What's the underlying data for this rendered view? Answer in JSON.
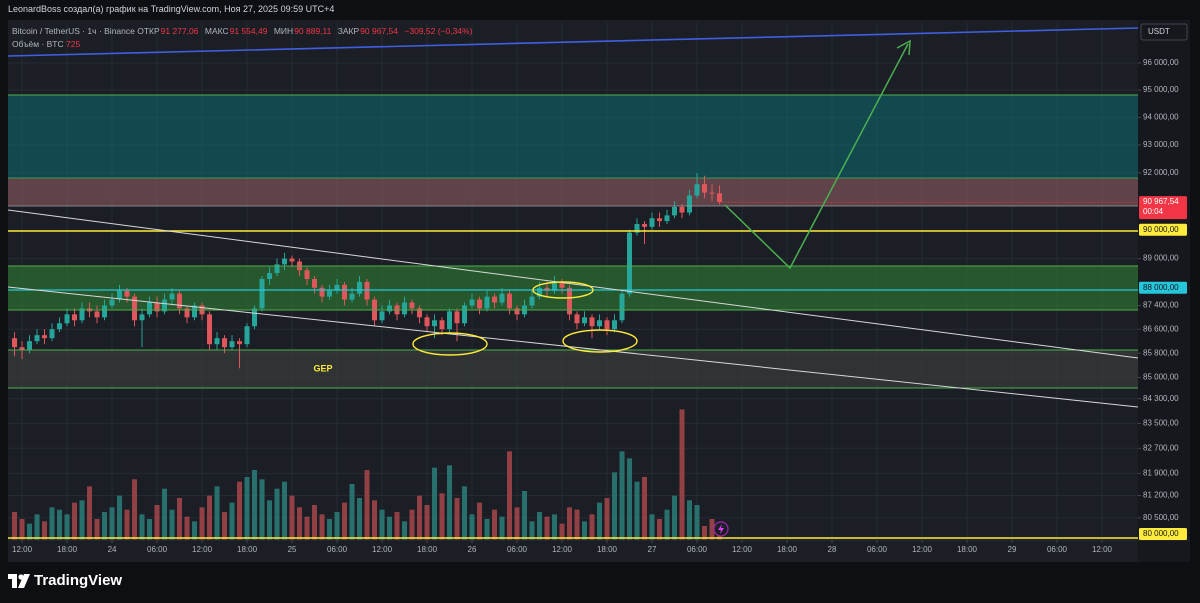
{
  "header": {
    "credit": "LeonardBoss создал(а) график на TradingView.com, Ноя 27, 2025 09:59 UTC+4"
  },
  "footer": {
    "logo": "TradingView"
  },
  "chart_data": {
    "type": "candlestick",
    "currency": "USDT",
    "annotation": "GEP",
    "legend": {
      "symbol": "Bitcoin / TetherUS · 1ч · Binance",
      "open_label": "ОТКР",
      "open": "91 277,06",
      "high_label": "МАКС",
      "high": "91 554,49",
      "low_label": "МИН",
      "low": "90 889,11",
      "close_label": "ЗАКР",
      "close": "90 967,54",
      "change": "−309,52 (−0,34%)"
    },
    "volume_label": "Объём · BTC",
    "log": true,
    "grid": true,
    "up_color": "#26a69a",
    "down_color": "#e0575b",
    "volume_up_color": "#2a7f7a",
    "volume_down_color": "#a6474a",
    "xlim": [
      -1.87,
      148.8
    ],
    "ylim": [
      79815,
      97535
    ],
    "vlim": [
      0,
      6000
    ],
    "xticks": [
      {
        "value": 0,
        "label": "12:00"
      },
      {
        "value": 6,
        "label": "18:00"
      },
      {
        "value": 12,
        "label": "24"
      },
      {
        "value": 18,
        "label": "06:00"
      },
      {
        "value": 24,
        "label": "12:00"
      },
      {
        "value": 30,
        "label": "18:00"
      },
      {
        "value": 36,
        "label": "25"
      },
      {
        "value": 42,
        "label": "06:00"
      },
      {
        "value": 48,
        "label": "12:00"
      },
      {
        "value": 54,
        "label": "18:00"
      },
      {
        "value": 60,
        "label": "26"
      },
      {
        "value": 66,
        "label": "06:00"
      },
      {
        "value": 72,
        "label": "12:00"
      },
      {
        "value": 78,
        "label": "18:00"
      },
      {
        "value": 84,
        "label": "27"
      },
      {
        "value": 90,
        "label": "06:00"
      },
      {
        "value": 96,
        "label": "12:00"
      },
      {
        "value": 102,
        "label": "18:00"
      },
      {
        "value": 108,
        "label": "28"
      },
      {
        "value": 114,
        "label": "06:00"
      },
      {
        "value": 120,
        "label": "12:00"
      },
      {
        "value": 126,
        "label": "18:00"
      },
      {
        "value": 132,
        "label": "29"
      },
      {
        "value": 138,
        "label": "06:00"
      },
      {
        "value": 144,
        "label": "12:00"
      }
    ],
    "yticks": [
      {
        "value": 96000,
        "label": "96 000,00"
      },
      {
        "value": 95000,
        "label": "95 000,00"
      },
      {
        "value": 94000,
        "label": "94 000,00"
      },
      {
        "value": 93000,
        "label": "93 000,00"
      },
      {
        "value": 92000,
        "label": "92 000,00"
      },
      {
        "value": 89000,
        "label": "89 000,00"
      },
      {
        "value": 87400,
        "label": "87 400,00"
      },
      {
        "value": 86600,
        "label": "86 600,00"
      },
      {
        "value": 85800,
        "label": "85 800,00"
      },
      {
        "value": 85000,
        "label": "85 000,00"
      },
      {
        "value": 84300,
        "label": "84 300,00"
      },
      {
        "value": 83500,
        "label": "83 500,00"
      },
      {
        "value": 82700,
        "label": "82 700,00"
      },
      {
        "value": 81900,
        "label": "81 900,00"
      },
      {
        "value": 81200,
        "label": "81 200,00"
      },
      {
        "value": 80500,
        "label": "80 500,00"
      }
    ],
    "price_markers": [
      {
        "value": 90000,
        "label": "90 000,00",
        "color": "#ffeb3b"
      },
      {
        "value": 88000,
        "label": "88 000,00",
        "color": "#26c6da"
      },
      {
        "value": 80000,
        "label": "80 000,00",
        "color": "#ffeb3b"
      }
    ],
    "last_price": {
      "value": 90967.54,
      "label": "90 967,54",
      "countdown": "00:04",
      "color": "#f23645"
    },
    "x": [
      -1,
      0,
      1,
      2,
      3,
      4,
      5,
      6,
      7,
      8,
      9,
      10,
      11,
      12,
      13,
      14,
      15,
      16,
      17,
      18,
      19,
      20,
      21,
      22,
      23,
      24,
      25,
      26,
      27,
      28,
      29,
      30,
      31,
      32,
      33,
      34,
      35,
      36,
      37,
      38,
      39,
      40,
      41,
      42,
      43,
      44,
      45,
      46,
      47,
      48,
      49,
      50,
      51,
      52,
      53,
      54,
      55,
      56,
      57,
      58,
      59,
      60,
      61,
      62,
      63,
      64,
      65,
      66,
      67,
      68,
      69,
      70,
      71,
      72,
      73,
      74,
      75,
      76,
      77,
      78,
      79,
      80,
      81,
      82,
      83,
      84,
      85,
      86,
      87,
      88,
      89,
      90,
      91,
      92,
      93
    ],
    "open": [
      86300,
      86000,
      85900,
      86200,
      86400,
      86300,
      86600,
      86800,
      87100,
      86900,
      87300,
      87200,
      87000,
      87400,
      87600,
      87900,
      87700,
      86900,
      87100,
      87500,
      87200,
      87600,
      87800,
      87300,
      87000,
      87400,
      87100,
      86100,
      86300,
      86000,
      86200,
      86100,
      86700,
      87300,
      88300,
      88500,
      88800,
      89000,
      88900,
      88600,
      88300,
      88000,
      87700,
      87900,
      88100,
      87600,
      87800,
      88200,
      87600,
      86900,
      87200,
      87400,
      87100,
      87500,
      87300,
      87000,
      86700,
      86900,
      86600,
      87200,
      86800,
      87400,
      87600,
      87300,
      87700,
      87500,
      87800,
      87300,
      87100,
      87400,
      87700,
      88000,
      87900,
      88200,
      88000,
      87100,
      86800,
      87000,
      86700,
      86900,
      86600,
      86900,
      87800,
      89900,
      90200,
      90100,
      90400,
      90300,
      90500,
      90800,
      90600,
      91200,
      91600,
      91300,
      91277.06
    ],
    "high": [
      86500,
      86200,
      86400,
      86600,
      86600,
      86800,
      87000,
      87300,
      87300,
      87500,
      87500,
      87400,
      87600,
      87800,
      88100,
      88000,
      87800,
      87300,
      87700,
      87700,
      87800,
      88000,
      87900,
      87400,
      87500,
      87500,
      87200,
      86500,
      86400,
      86400,
      86300,
      86800,
      87400,
      88400,
      88700,
      89000,
      89200,
      89100,
      89000,
      88700,
      88400,
      88100,
      88100,
      88300,
      88200,
      88000,
      88400,
      88300,
      87700,
      87400,
      87600,
      87500,
      87700,
      87600,
      87400,
      87100,
      87100,
      87000,
      87300,
      87300,
      87500,
      87800,
      87700,
      87900,
      87800,
      88000,
      87900,
      87400,
      87600,
      87900,
      88200,
      88200,
      88400,
      88300,
      88100,
      87200,
      87200,
      87100,
      87100,
      87000,
      87100,
      87900,
      90000,
      90400,
      90300,
      90600,
      90600,
      90700,
      91000,
      90900,
      91400,
      92000,
      91900,
      91600,
      91554.49
    ],
    "low": [
      85700,
      85600,
      85800,
      86100,
      86100,
      86200,
      86500,
      86700,
      86700,
      86800,
      87000,
      86800,
      86900,
      87300,
      87500,
      87500,
      86700,
      86000,
      87000,
      87000,
      87100,
      87400,
      87100,
      86800,
      86900,
      86900,
      85900,
      85900,
      85800,
      85900,
      85300,
      86000,
      86600,
      87200,
      88100,
      88400,
      88600,
      88700,
      88400,
      88100,
      87800,
      87500,
      87600,
      87800,
      87400,
      87500,
      87700,
      87400,
      86700,
      86800,
      87100,
      86900,
      87000,
      87100,
      86800,
      86500,
      86300,
      86400,
      86500,
      86200,
      86700,
      87300,
      87100,
      87200,
      87300,
      87400,
      87100,
      86900,
      87000,
      87300,
      87600,
      87700,
      87800,
      87800,
      86900,
      86600,
      86700,
      86300,
      86600,
      86400,
      86500,
      86800,
      87700,
      89800,
      89500,
      90000,
      90100,
      90200,
      90400,
      90400,
      90500,
      91100,
      91100,
      91000,
      90889.11
    ],
    "close": [
      86000,
      85900,
      86200,
      86400,
      86300,
      86600,
      86800,
      87100,
      86900,
      87300,
      87200,
      87000,
      87400,
      87600,
      87900,
      87700,
      86900,
      87100,
      87500,
      87200,
      87600,
      87800,
      87300,
      87000,
      87400,
      87100,
      86100,
      86300,
      86000,
      86200,
      86100,
      86700,
      87300,
      88300,
      88500,
      88800,
      89000,
      88900,
      88600,
      88300,
      88000,
      87700,
      87900,
      88100,
      87600,
      87800,
      88200,
      87600,
      86900,
      87200,
      87400,
      87100,
      87500,
      87300,
      87000,
      86700,
      86900,
      86600,
      87200,
      86800,
      87400,
      87600,
      87300,
      87700,
      87500,
      87800,
      87300,
      87100,
      87400,
      87700,
      88000,
      87900,
      88200,
      88000,
      87100,
      86800,
      87000,
      86700,
      86900,
      86600,
      86900,
      87800,
      89900,
      90200,
      90100,
      90400,
      90300,
      90500,
      90800,
      90600,
      91200,
      91600,
      91300,
      91277.06,
      90967.54
    ],
    "volume": [
      1200,
      900,
      700,
      1100,
      800,
      1400,
      1300,
      1100,
      1600,
      1700,
      2300,
      900,
      1200,
      1400,
      1900,
      1300,
      2600,
      1100,
      900,
      1500,
      2200,
      1300,
      1800,
      1000,
      800,
      1400,
      1900,
      2300,
      1200,
      1600,
      2500,
      2700,
      3000,
      2600,
      1700,
      2200,
      2500,
      1900,
      1400,
      1000,
      1500,
      1100,
      900,
      1200,
      1600,
      2400,
      1800,
      3000,
      1700,
      1300,
      1000,
      1200,
      800,
      1300,
      1900,
      1500,
      3100,
      2000,
      3200,
      1800,
      2300,
      1100,
      1600,
      900,
      1300,
      1000,
      3800,
      1400,
      2100,
      800,
      1200,
      1000,
      1100,
      700,
      1400,
      1300,
      800,
      1100,
      1600,
      1800,
      2900,
      3800,
      3500,
      2500,
      2700,
      1100,
      900,
      1300,
      1900,
      5600,
      1700,
      1500,
      600,
      900,
      725
    ]
  }
}
